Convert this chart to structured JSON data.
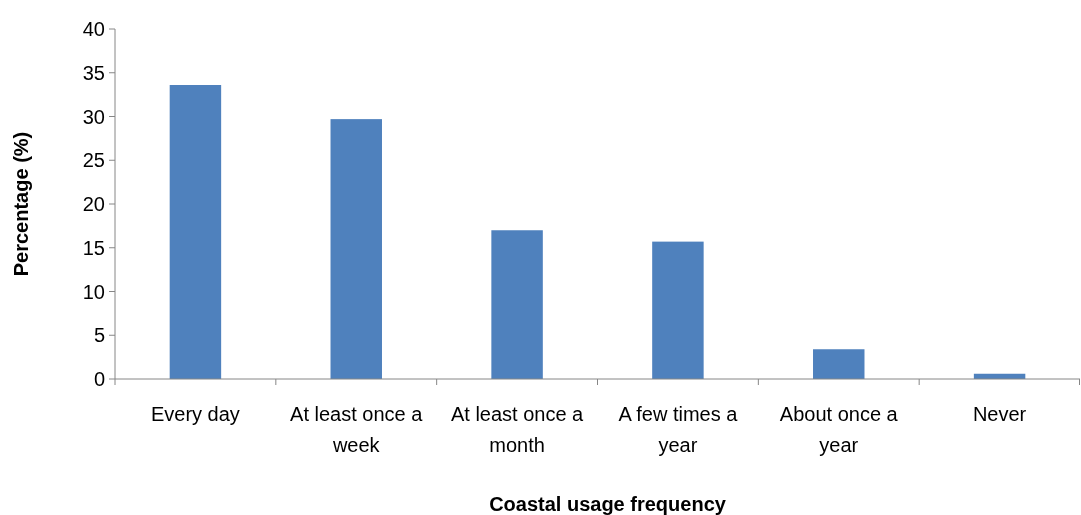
{
  "chart_data": {
    "type": "bar",
    "xlabel": "Coastal usage frequency",
    "ylabel": "Percentage (%)",
    "categories": [
      "Every day",
      "At least once a week",
      "At least once a month",
      "A few times a year",
      "About once a year",
      "Never"
    ],
    "values": [
      33.6,
      29.7,
      17.0,
      15.7,
      3.4,
      0.6
    ],
    "color": "#4f81bd",
    "ylim": [
      0,
      40
    ],
    "yticks": [
      0,
      5,
      10,
      15,
      20,
      25,
      30,
      35,
      40
    ],
    "grid": false
  }
}
